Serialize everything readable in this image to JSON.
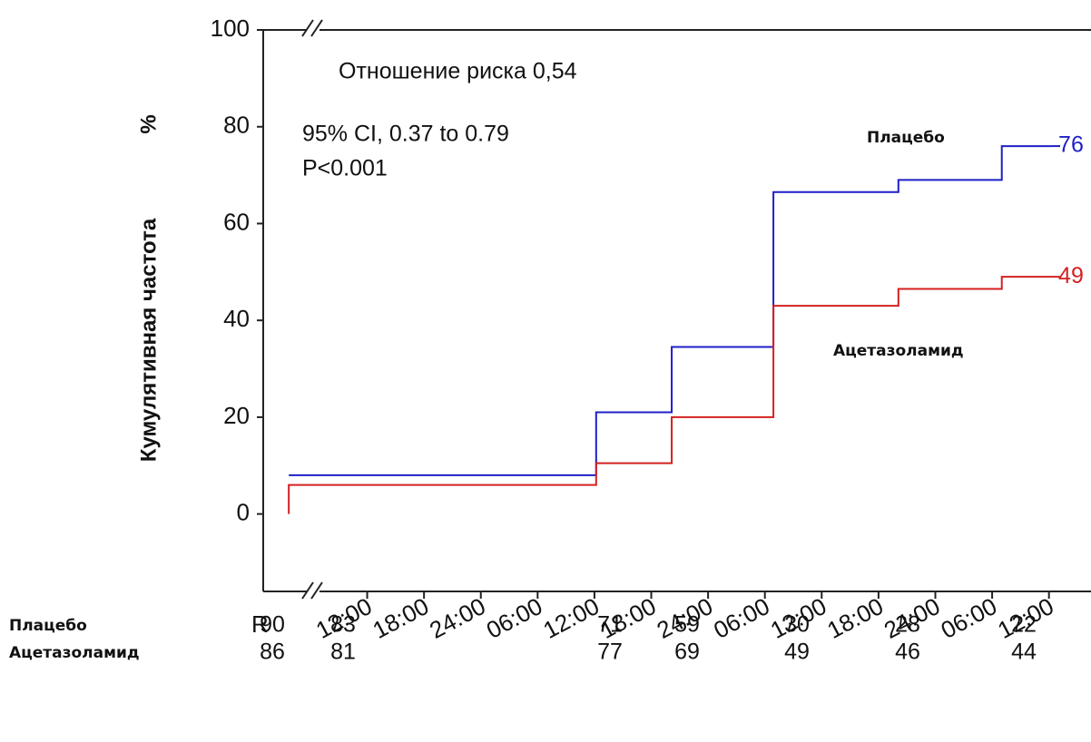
{
  "chart_data": {
    "type": "step",
    "ylabel": "Кумулятивная частота",
    "yunit": "%",
    "annotations": [
      "Отношение риска 0,54",
      "95% CI, 0.37 to 0.79",
      "P<0.001"
    ],
    "series": [
      {
        "name": "Плацебо",
        "color": "#1f1fc8",
        "x": [
          -0.38,
          5.03,
          6.36,
          8.15,
          10.35,
          12.17,
          13.07
        ],
        "values": [
          8,
          21,
          34.5,
          66.5,
          69,
          76,
          76
        ]
      },
      {
        "name": "Ацетазоламид",
        "color": "#d42020",
        "x": [
          -0.38,
          -0.38,
          5.03,
          6.36,
          8.15,
          10.35,
          12.17,
          13.07
        ],
        "values": [
          0,
          6,
          10.5,
          20,
          43,
          46.5,
          49,
          49
        ]
      }
    ],
    "xlim": [
      -0.83,
      13.74
    ],
    "xticks": [
      {
        "value": 1,
        "label": "12:00"
      },
      {
        "value": 2,
        "label": "18:00"
      },
      {
        "value": 3,
        "label": "24:00"
      },
      {
        "value": 4,
        "label": "06:00"
      },
      {
        "value": 5,
        "label": "12:00"
      },
      {
        "value": 6,
        "label": "18:00"
      },
      {
        "value": 7,
        "label": "24:00"
      },
      {
        "value": 8,
        "label": "06:00"
      },
      {
        "value": 9,
        "label": "12:00"
      },
      {
        "value": 10,
        "label": "18:00"
      },
      {
        "value": 11,
        "label": "24:00"
      },
      {
        "value": 12,
        "label": "06:00"
      },
      {
        "value": 13,
        "label": "12:00"
      }
    ],
    "ylim": [
      -16,
      100
    ],
    "yticks": [
      0,
      20,
      40,
      60,
      80,
      100
    ],
    "grid": false,
    "risk_table": {
      "header": "R",
      "rows": [
        {
          "name": "Плацебо",
          "values": [
            90,
            83,
            71,
            59,
            30,
            28,
            22
          ]
        },
        {
          "name": "Ацетазоламид",
          "values": [
            86,
            81,
            77,
            69,
            49,
            46,
            44
          ]
        }
      ]
    }
  }
}
